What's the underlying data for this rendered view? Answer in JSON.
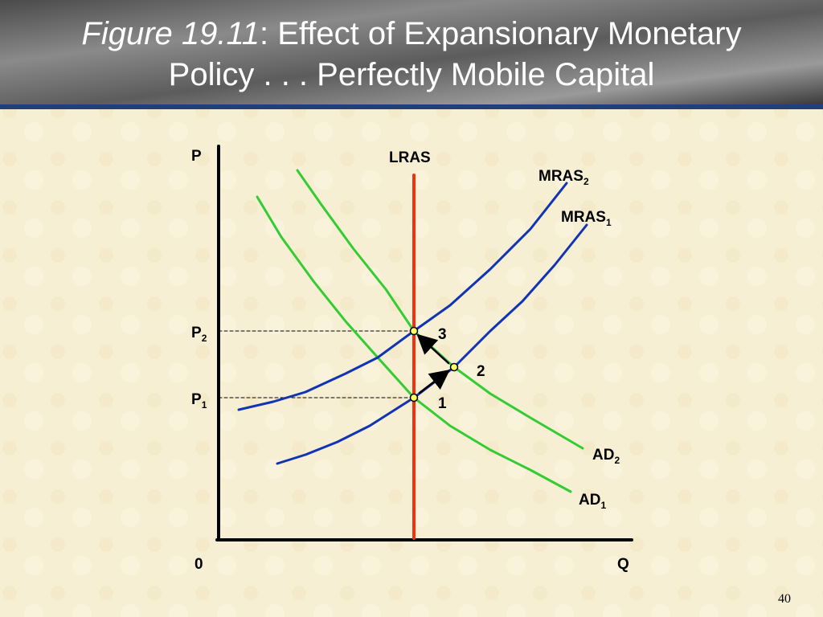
{
  "header": {
    "figure": "Figure 19.11",
    "title_line1": ":  Effect of Expansionary Monetary",
    "title_line2": "Policy . . . Perfectly Mobile Capital"
  },
  "axes": {
    "y_label": "P",
    "x_label": "Q",
    "origin": "0"
  },
  "curves": {
    "lras": "LRAS",
    "mras2": {
      "text": "MRAS",
      "sub": "2"
    },
    "mras1": {
      "text": "MRAS",
      "sub": "1"
    },
    "ad2": {
      "text": "AD",
      "sub": "2"
    },
    "ad1": {
      "text": "AD",
      "sub": "1"
    }
  },
  "price_levels": {
    "p2": {
      "text": "P",
      "sub": "2"
    },
    "p1": {
      "text": "P",
      "sub": "1"
    }
  },
  "points": [
    "1",
    "2",
    "3"
  ],
  "page_number": "40"
}
